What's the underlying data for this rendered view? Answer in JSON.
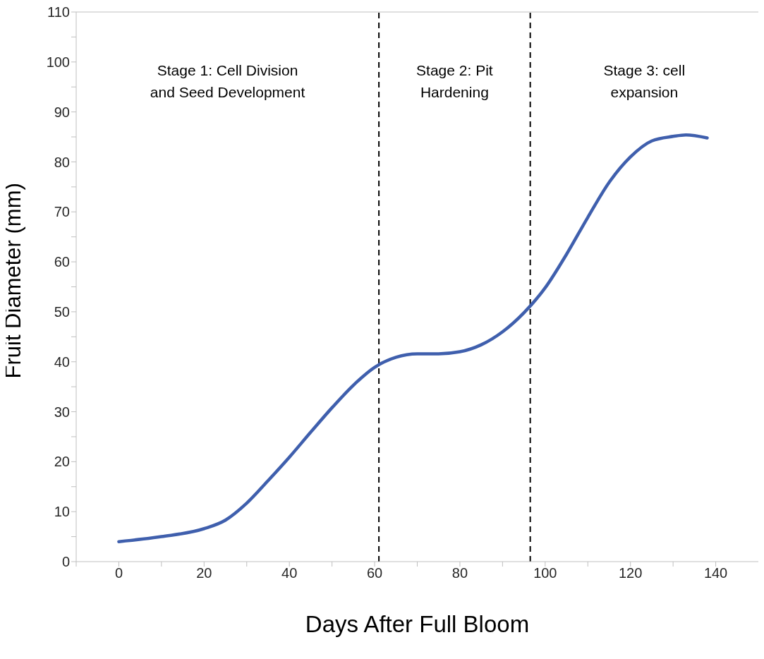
{
  "chart_data": {
    "type": "line",
    "xlabel": "Days After Full Bloom",
    "ylabel": "Fruit Diameter (mm)",
    "x": [
      0,
      10,
      20,
      25,
      30,
      35,
      40,
      45,
      50,
      55,
      60,
      65,
      70,
      75,
      80,
      85,
      90,
      95,
      100,
      105,
      110,
      115,
      120,
      125,
      130,
      133,
      138
    ],
    "series": [
      {
        "color": "#3f5fad",
        "values": [
          4.0,
          5.0,
          6.6,
          8.3,
          11.7,
          16.2,
          20.9,
          25.9,
          30.8,
          35.3,
          38.9,
          40.9,
          41.6,
          41.6,
          42.0,
          43.4,
          46.0,
          49.8,
          54.8,
          61.5,
          68.9,
          75.9,
          81.0,
          84.2,
          85.1,
          85.4,
          84.8
        ]
      }
    ],
    "xlim": [
      -10,
      150
    ],
    "xticks": [
      {
        "value": -10,
        "label": null
      },
      0,
      {
        "value": 10,
        "label": null
      },
      20,
      {
        "value": 30,
        "label": null
      },
      40,
      {
        "value": 50,
        "label": null
      },
      60,
      {
        "value": 70,
        "label": null
      },
      80,
      {
        "value": 90,
        "label": null
      },
      100,
      {
        "value": 110,
        "label": null
      },
      120,
      {
        "value": 130,
        "label": null
      },
      140
    ],
    "ylim": [
      0,
      110
    ],
    "yticks": [
      0,
      {
        "value": 5,
        "label": null
      },
      10,
      {
        "value": 15,
        "label": null
      },
      20,
      {
        "value": 25,
        "label": null
      },
      30,
      {
        "value": 35,
        "label": null
      },
      40,
      {
        "value": 45,
        "label": null
      },
      50,
      {
        "value": 55,
        "label": null
      },
      60,
      {
        "value": 65,
        "label": null
      },
      70,
      {
        "value": 75,
        "label": null
      },
      80,
      {
        "value": 85,
        "label": null
      },
      90,
      {
        "value": 95,
        "label": null
      },
      100,
      {
        "value": 105,
        "label": null
      },
      110
    ],
    "ref_lines": [
      {
        "axis": "x",
        "value": 61,
        "color": "#000000",
        "line_style": "dashed"
      },
      {
        "axis": "x",
        "value": 96.5,
        "color": "#000000",
        "line_style": "dashed"
      }
    ],
    "annotations": [
      "Stage 1: Cell Division\nand Seed Development",
      "Stage 2: Pit\nHardening",
      "Stage 3: cell\nexpansion"
    ],
    "grid": false,
    "legend": false,
    "marker": "none",
    "line_style": "solid"
  }
}
